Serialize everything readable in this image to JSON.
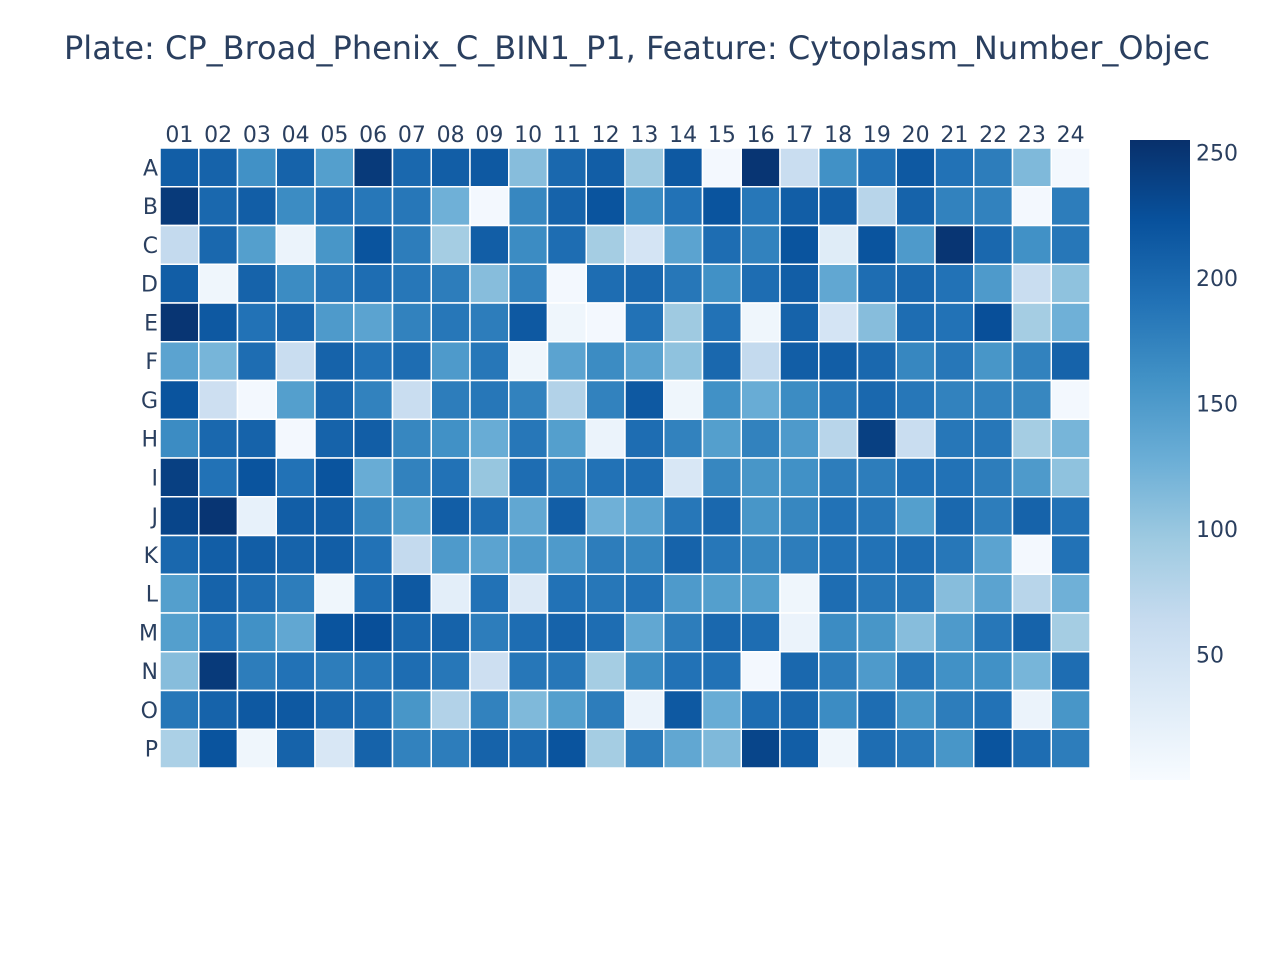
{
  "chart_data": {
    "type": "heatmap",
    "title": "Plate: CP_Broad_Phenix_C_BIN1_P1, Feature: Cytoplasm_Number_Objec",
    "columns": [
      "01",
      "02",
      "03",
      "04",
      "05",
      "06",
      "07",
      "08",
      "09",
      "10",
      "11",
      "12",
      "13",
      "14",
      "15",
      "16",
      "17",
      "18",
      "19",
      "20",
      "21",
      "22",
      "23",
      "24"
    ],
    "rows": [
      "A",
      "B",
      "C",
      "D",
      "E",
      "F",
      "G",
      "H",
      "I",
      "J",
      "K",
      "L",
      "M",
      "N",
      "O",
      "P"
    ],
    "values": [
      [
        210,
        205,
        160,
        205,
        145,
        245,
        200,
        210,
        215,
        110,
        200,
        210,
        95,
        215,
        5,
        250,
        60,
        160,
        190,
        215,
        190,
        180,
        115,
        5
      ],
      [
        245,
        200,
        210,
        165,
        195,
        185,
        185,
        125,
        5,
        170,
        205,
        220,
        165,
        190,
        220,
        185,
        210,
        210,
        75,
        205,
        175,
        175,
        5,
        180
      ],
      [
        65,
        200,
        145,
        15,
        155,
        220,
        180,
        90,
        210,
        165,
        195,
        90,
        45,
        140,
        195,
        175,
        220,
        30,
        220,
        150,
        250,
        200,
        160,
        185
      ],
      [
        210,
        10,
        205,
        165,
        185,
        195,
        185,
        180,
        110,
        175,
        5,
        195,
        200,
        185,
        160,
        195,
        210,
        135,
        195,
        200,
        190,
        150,
        60,
        105
      ],
      [
        250,
        215,
        190,
        200,
        150,
        140,
        175,
        185,
        180,
        215,
        10,
        5,
        190,
        95,
        190,
        10,
        205,
        45,
        110,
        195,
        190,
        225,
        90,
        125
      ],
      [
        140,
        120,
        195,
        60,
        205,
        190,
        195,
        150,
        185,
        10,
        140,
        165,
        140,
        105,
        200,
        65,
        210,
        210,
        200,
        170,
        185,
        155,
        175,
        205
      ],
      [
        220,
        55,
        5,
        145,
        200,
        175,
        60,
        180,
        185,
        175,
        80,
        175,
        215,
        10,
        160,
        130,
        165,
        185,
        200,
        185,
        175,
        175,
        170,
        5
      ],
      [
        165,
        200,
        205,
        5,
        205,
        210,
        170,
        160,
        130,
        185,
        145,
        15,
        195,
        175,
        145,
        175,
        150,
        75,
        240,
        60,
        185,
        185,
        90,
        120
      ],
      [
        240,
        190,
        220,
        190,
        220,
        130,
        175,
        190,
        100,
        195,
        175,
        190,
        195,
        40,
        170,
        155,
        160,
        180,
        180,
        190,
        190,
        180,
        150,
        105
      ],
      [
        235,
        250,
        20,
        210,
        210,
        170,
        145,
        210,
        195,
        135,
        210,
        125,
        140,
        185,
        200,
        155,
        170,
        190,
        185,
        145,
        200,
        180,
        205,
        190
      ],
      [
        200,
        210,
        210,
        205,
        210,
        190,
        65,
        150,
        140,
        150,
        150,
        180,
        170,
        205,
        185,
        170,
        180,
        190,
        190,
        195,
        185,
        140,
        5,
        190
      ],
      [
        145,
        205,
        195,
        180,
        10,
        195,
        215,
        25,
        190,
        35,
        190,
        185,
        190,
        150,
        145,
        145,
        10,
        195,
        185,
        185,
        110,
        140,
        75,
        125
      ],
      [
        145,
        190,
        160,
        135,
        220,
        225,
        200,
        205,
        180,
        195,
        205,
        195,
        135,
        180,
        200,
        195,
        15,
        165,
        155,
        110,
        150,
        185,
        205,
        90
      ],
      [
        110,
        245,
        180,
        190,
        180,
        185,
        195,
        185,
        55,
        185,
        185,
        90,
        165,
        190,
        190,
        5,
        200,
        180,
        150,
        185,
        160,
        160,
        120,
        195
      ],
      [
        185,
        205,
        215,
        215,
        200,
        195,
        155,
        80,
        175,
        115,
        145,
        180,
        15,
        215,
        130,
        195,
        200,
        165,
        195,
        155,
        180,
        190,
        15,
        155
      ],
      [
        85,
        220,
        10,
        205,
        40,
        205,
        175,
        180,
        205,
        200,
        220,
        90,
        180,
        135,
        115,
        235,
        210,
        10,
        195,
        185,
        155,
        220,
        195,
        180
      ]
    ],
    "colorscale": [
      "#f7fbff",
      "#deebf7",
      "#c6dbef",
      "#9ecae1",
      "#6baed6",
      "#4292c6",
      "#2171b5",
      "#08519c",
      "#08306b"
    ],
    "zmin": 0,
    "zmax": 255,
    "colorbar_ticks": [
      50,
      100,
      150,
      200,
      250
    ],
    "x_axis_side": "top",
    "grid": false,
    "legend": "colorbar right"
  }
}
